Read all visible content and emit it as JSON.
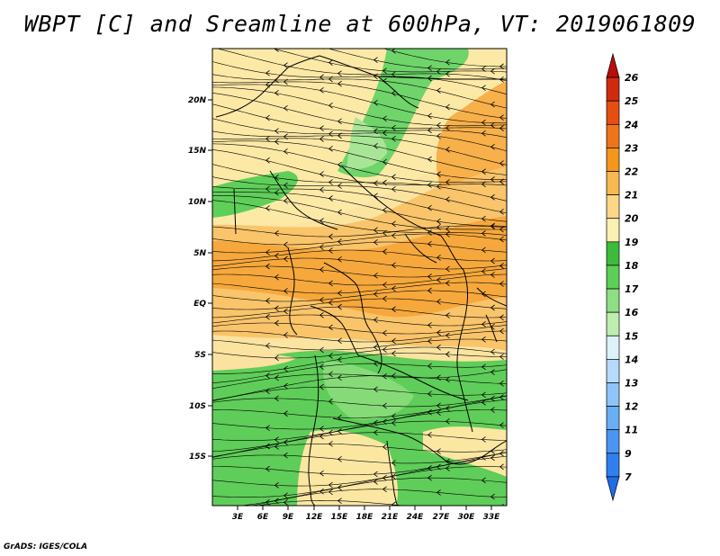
{
  "title": "WBPT [C] and Sreamline at 600hPa, VT: 2019061809",
  "credit": "GrADS: IGES/COLA",
  "map": {
    "lat_labels": [
      "20N",
      "15N",
      "10N",
      "5N",
      "EQ",
      "5S",
      "10S",
      "15S"
    ],
    "lon_labels": [
      "3E",
      "6E",
      "9E",
      "12E",
      "15E",
      "18E",
      "21E",
      "24E",
      "27E",
      "30E",
      "33E"
    ]
  },
  "colorbar": {
    "labels": [
      "7",
      "9",
      "11",
      "12",
      "13",
      "14",
      "15",
      "16",
      "17",
      "18",
      "19",
      "20",
      "21",
      "22",
      "23",
      "24",
      "25",
      "26"
    ],
    "colors": [
      "#1e6fe6",
      "#2f80ee",
      "#4a96f2",
      "#68aef5",
      "#8ec4f8",
      "#b6dbfa",
      "#ddf1f8",
      "#bdeeaf",
      "#8edf83",
      "#5ccf57",
      "#3dbb3a",
      "#fbf0b0",
      "#fad686",
      "#f7b84f",
      "#f4971c",
      "#f0741a",
      "#e54f14",
      "#d12b0d",
      "#b80e08"
    ]
  }
}
